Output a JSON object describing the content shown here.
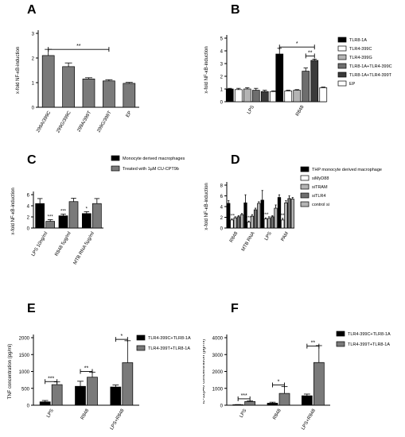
{
  "panels": {
    "A": {
      "letter": "A"
    },
    "B": {
      "letter": "B"
    },
    "C": {
      "letter": "C"
    },
    "D": {
      "letter": "D"
    },
    "E": {
      "letter": "E"
    },
    "F": {
      "letter": "F"
    }
  },
  "colors": {
    "black": "#000000",
    "dark": "#3a3a3a",
    "mid": "#6e6e6e",
    "light": "#b4b4b4",
    "white": "#ffffff",
    "grey": "#7a7a7a",
    "axis": "#000000"
  },
  "chart_data": [
    {
      "id": "A",
      "type": "bar",
      "title": "",
      "ylabel": "x-fold NF-κB-induction",
      "ylim": [
        0,
        3
      ],
      "yticks": [
        0,
        1,
        2,
        3
      ],
      "categories": [
        "299A/399C",
        "299G/399C",
        "299A/399T",
        "299G/399T",
        "EP"
      ],
      "series": [
        {
          "values": [
            2.1,
            1.65,
            1.15,
            1.07,
            0.97
          ],
          "errors": [
            0.25,
            0.15,
            0.05,
            0.05,
            0.04
          ],
          "color": "#7a7a7a"
        }
      ],
      "annotations": [
        {
          "text": "**",
          "from": 0,
          "to": 3,
          "y": 2.35
        }
      ]
    },
    {
      "id": "B",
      "type": "bar",
      "title": "",
      "ylabel": "x-fold NF-κB-induction",
      "ylim": [
        0,
        5
      ],
      "yticks": [
        0,
        1,
        2,
        3,
        4,
        5
      ],
      "categories": [
        "LPS",
        "R848"
      ],
      "series": [
        {
          "name": "TLR8-1A",
          "values": [
            1.0,
            3.75
          ],
          "errors": [
            0.05,
            0.45
          ],
          "color": "#000000"
        },
        {
          "name": "TLR4-399C",
          "values": [
            0.95,
            0.85
          ],
          "errors": [
            0.1,
            0.05
          ],
          "color": "#ffffff"
        },
        {
          "name": "TLR4-399G",
          "values": [
            1.0,
            0.9
          ],
          "errors": [
            0.1,
            0.05
          ],
          "color": "#b4b4b4"
        },
        {
          "name": "TLR8-1A+TLR4-399C",
          "values": [
            0.9,
            2.4
          ],
          "errors": [
            0.15,
            0.25
          ],
          "color": "#6e6e6e"
        },
        {
          "name": "TLR8-1A+TLR4-399T",
          "values": [
            0.8,
            3.25
          ],
          "errors": [
            0.1,
            0.1
          ],
          "color": "#3a3a3a"
        },
        {
          "name": "EP",
          "values": [
            0.8,
            1.1
          ],
          "errors": [
            0.05,
            0.05
          ],
          "color": "#ffffff"
        }
      ],
      "annotations": [
        {
          "text": "*",
          "cat": 1,
          "from": 0,
          "to": 4,
          "y": 4.3
        },
        {
          "text": "**",
          "cat": 1,
          "from": 3,
          "to": 4,
          "y": 3.6
        }
      ]
    },
    {
      "id": "C",
      "type": "bar",
      "title": "",
      "ylabel": "x-fold NF-κB-induction",
      "ylim": [
        0,
        6
      ],
      "yticks": [
        0,
        2,
        4,
        6
      ],
      "categories": [
        "LPS 10ng/ml",
        "R848 5µg/ml",
        "MTB RNA 5µg/ml"
      ],
      "series": [
        {
          "name": "Monocyte derived macrophages",
          "values": [
            4.4,
            2.2,
            2.6
          ],
          "errors": [
            0.9,
            0.3,
            0.35
          ],
          "color": "#000000"
        },
        {
          "name": "Treated with 1µM CU-CPT9b",
          "values": [
            1.2,
            4.75,
            4.4
          ],
          "errors": [
            0.3,
            0.6,
            0.9
          ],
          "color": "#7a7a7a"
        }
      ],
      "annotations": [
        {
          "text": "***",
          "cat": 0,
          "series": 1
        },
        {
          "text": "***",
          "cat": 1,
          "series": 0
        },
        {
          "text": "*",
          "cat": 2,
          "series": 0
        }
      ]
    },
    {
      "id": "D",
      "type": "bar",
      "title": "",
      "ylabel": "x-fold NF-κB-induction",
      "ylim": [
        0,
        8
      ],
      "yticks": [
        0,
        2,
        4,
        6,
        8
      ],
      "categories": [
        "R848",
        "MTB RNA",
        "LPS",
        "PAM"
      ],
      "series": [
        {
          "name": "THP monocyte derived macrophage",
          "values": [
            4.6,
            4.7,
            5.2,
            5.7
          ],
          "errors": [
            0.5,
            1.5,
            1.8,
            0.5
          ],
          "color": "#000000"
        },
        {
          "name": "siMyD88",
          "values": [
            1.5,
            1.1,
            1.7,
            1.5
          ],
          "errors": [
            0.2,
            0.2,
            0.2,
            0.3
          ],
          "color": "#ffffff"
        },
        {
          "name": "siTRAM",
          "values": [
            1.9,
            2.2,
            1.8,
            4.7
          ],
          "errors": [
            0.2,
            0.3,
            0.3,
            0.4
          ],
          "color": "#b4b4b4"
        },
        {
          "name": "siTLR4",
          "values": [
            2.1,
            3.4,
            2.1,
            5.5
          ],
          "errors": [
            0.2,
            0.3,
            0.2,
            0.5
          ],
          "color": "#6e6e6e"
        },
        {
          "name": "control si",
          "values": [
            2.5,
            4.6,
            3.7,
            5.4
          ],
          "errors": [
            0.2,
            0.3,
            0.6,
            0.3
          ],
          "color": "#b4b4b4"
        }
      ],
      "annotations": [
        {
          "text": "***",
          "cat": 0,
          "series": 1
        },
        {
          "text": "***",
          "cat": 1,
          "series": 1
        },
        {
          "text": "***",
          "cat": 2,
          "series": 1
        },
        {
          "text": "**",
          "cat": 3,
          "series": 1
        }
      ]
    },
    {
      "id": "E",
      "type": "bar",
      "title": "",
      "ylabel": "TNF concentration (pg/ml)",
      "ylim": [
        0,
        2000
      ],
      "yticks": [
        0,
        500,
        1000,
        1500,
        2000
      ],
      "categories": [
        "LPS",
        "R848",
        "LPS+R848"
      ],
      "series": [
        {
          "name": "TLR4-399C+TLR8-1A",
          "values": [
            100,
            560,
            540
          ],
          "errors": [
            40,
            150,
            60
          ],
          "color": "#000000"
        },
        {
          "name": "TLR4-399T+TLR8-1A",
          "values": [
            610,
            830,
            1260
          ],
          "errors": [
            80,
            150,
            650
          ],
          "color": "#7a7a7a"
        }
      ],
      "annotations": [
        {
          "text": "***",
          "cat": 0,
          "y": 700
        },
        {
          "text": "**",
          "cat": 1,
          "y": 1000
        },
        {
          "text": "*",
          "cat": 2,
          "y": 1950
        }
      ]
    },
    {
      "id": "F",
      "type": "bar",
      "title": "",
      "ylabel": "IL-12p40 concentration (pg/ml)",
      "ylim": [
        0,
        4000
      ],
      "yticks": [
        0,
        1000,
        2000,
        3000,
        4000
      ],
      "categories": [
        "LPS",
        "R848",
        "LPS+R848"
      ],
      "series": [
        {
          "name": "TLR4-399C+TLR8-1A",
          "values": [
            30,
            120,
            560
          ],
          "errors": [
            10,
            60,
            100
          ],
          "color": "#000000"
        },
        {
          "name": "TLR4-399T+TLR8-1A",
          "values": [
            220,
            700,
            2530
          ],
          "errors": [
            30,
            400,
            1000
          ],
          "color": "#7a7a7a"
        }
      ],
      "annotations": [
        {
          "text": "***",
          "cat": 0,
          "y": 380
        },
        {
          "text": "*",
          "cat": 1,
          "y": 1200
        },
        {
          "text": "**",
          "cat": 2,
          "y": 3500
        }
      ]
    }
  ]
}
